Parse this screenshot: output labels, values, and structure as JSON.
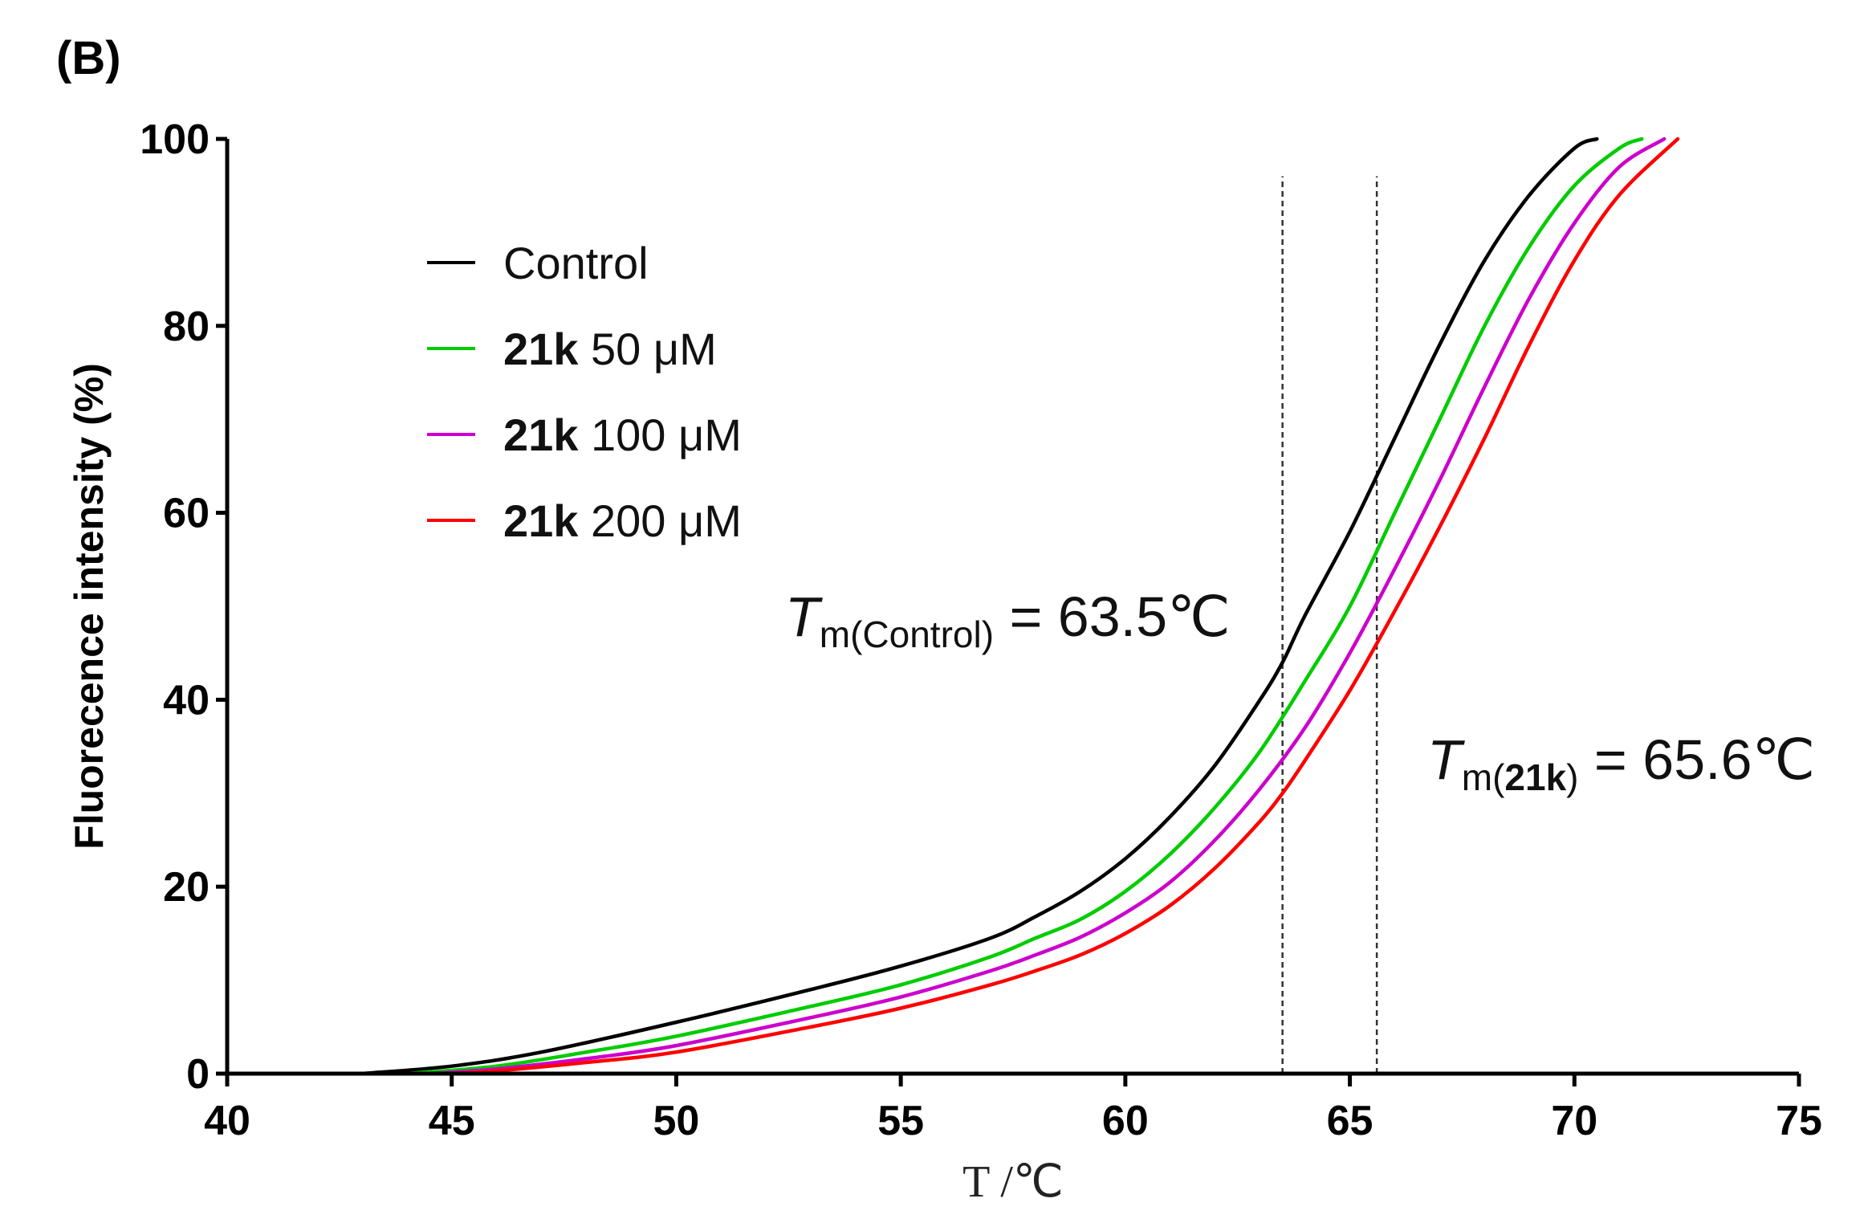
{
  "chart_data": {
    "type": "line",
    "panel_label": "(B)",
    "xlabel": "T /℃",
    "ylabel": "Fluorecence intensity (%)",
    "xlim": [
      40,
      75
    ],
    "ylim": [
      0,
      100
    ],
    "xticks": [
      40,
      45,
      50,
      55,
      60,
      65,
      70,
      75
    ],
    "yticks": [
      0,
      20,
      40,
      60,
      80,
      100
    ],
    "legend_position": "top-left",
    "series": [
      {
        "name": "Control",
        "bold_prefix": "",
        "suffix": "Control",
        "color": "#000000",
        "x": [
          43,
          45,
          47,
          50,
          53,
          55,
          57,
          58,
          59,
          60,
          61,
          62,
          63,
          63.5,
          64,
          65,
          66,
          67,
          68,
          69,
          70,
          70.5
        ],
        "y": [
          0,
          0.8,
          2.3,
          5.5,
          9,
          11.5,
          14.5,
          16.8,
          19.5,
          23,
          27.5,
          33,
          40,
          44,
          49,
          58,
          68,
          78,
          87,
          94,
          99,
          100
        ]
      },
      {
        "name": "21k 50 μM",
        "bold_prefix": "21k",
        "suffix": " 50 μM",
        "color": "#00cc00",
        "x": [
          44,
          46,
          48,
          50,
          53,
          55,
          57,
          58,
          59,
          60,
          61,
          62,
          63,
          64,
          65,
          66,
          67,
          68,
          69,
          70,
          71,
          71.5
        ],
        "y": [
          0,
          0.8,
          2.3,
          4,
          7.2,
          9.5,
          12.5,
          14.5,
          16.5,
          19.5,
          23.5,
          28.5,
          34.5,
          42,
          50,
          60,
          70,
          80,
          88.5,
          95,
          99,
          100
        ]
      },
      {
        "name": "21k 100 μM",
        "bold_prefix": "21k",
        "suffix": " 100 μM",
        "color": "#cc00cc",
        "x": [
          44.5,
          46,
          48,
          50,
          53,
          55,
          57,
          58,
          59,
          60,
          61,
          62,
          63,
          64,
          65,
          66,
          67,
          68,
          69,
          70,
          71,
          72
        ],
        "y": [
          0,
          0.5,
          1.6,
          3,
          6,
          8.2,
          11,
          12.7,
          14.6,
          17.2,
          20.5,
          25,
          30.5,
          37,
          45,
          54,
          63.5,
          73.5,
          83,
          91,
          97,
          100
        ]
      },
      {
        "name": "21k 200 μM",
        "bold_prefix": "21k",
        "suffix": " 200 μM",
        "color": "#ff0000",
        "x": [
          45,
          46,
          48,
          50,
          53,
          55,
          57,
          58,
          59,
          60,
          61,
          62,
          63,
          63.5,
          64,
          65,
          66,
          67,
          68,
          69,
          70,
          71,
          72.3
        ],
        "y": [
          0,
          0.3,
          1.2,
          2.3,
          5,
          7,
          9.5,
          11,
          12.7,
          15,
          18,
          22,
          27,
          30,
          33.5,
          41,
          49.5,
          58.5,
          68,
          78,
          87,
          94,
          100
        ]
      }
    ],
    "vlines": [
      {
        "x": 63.5,
        "y_from": 0,
        "y_to": 96
      },
      {
        "x": 65.6,
        "y_from": 0,
        "y_to": 96
      }
    ],
    "annotations": [
      {
        "italic": "T",
        "sub_plain": "m(Control)",
        "sub_bold": "",
        "sub_close": "",
        "value": " = 63.5℃"
      },
      {
        "italic": "T",
        "sub_plain": "m(",
        "sub_bold": "21k",
        "sub_close": ")",
        "value": " = 65.6℃"
      }
    ]
  }
}
